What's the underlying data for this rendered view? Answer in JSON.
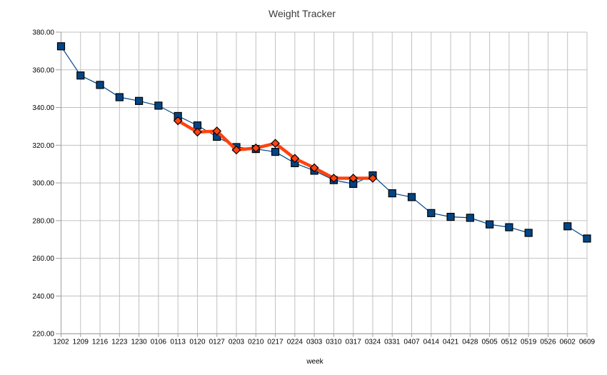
{
  "chart_data": {
    "type": "line",
    "title": "Weight Tracker",
    "xlabel": "week",
    "ylabel": "",
    "ylim": [
      220,
      380
    ],
    "yticks": [
      380,
      360,
      340,
      320,
      300,
      280,
      260,
      240,
      220
    ],
    "ytick_labels": [
      "380.00",
      "360.00",
      "340.00",
      "320.00",
      "300.00",
      "280.00",
      "260.00",
      "240.00",
      "220.00"
    ],
    "grid": "both",
    "legend": "none",
    "categories": [
      "1202",
      "1209",
      "1216",
      "1223",
      "1230",
      "0106",
      "0113",
      "0120",
      "0127",
      "0203",
      "0210",
      "0217",
      "0224",
      "0303",
      "0310",
      "0317",
      "0324",
      "0331",
      "0407",
      "0414",
      "0421",
      "0428",
      "0505",
      "0512",
      "0519",
      "0526",
      "0602",
      "0609"
    ],
    "series": [
      {
        "name": "blue-squares",
        "marker": "square",
        "color": "#004586",
        "marker_border": "#000000",
        "line_width": 1.2,
        "values": [
          372.5,
          357,
          352,
          345.5,
          343.5,
          341,
          335.5,
          330.5,
          324.5,
          319,
          318,
          316.5,
          310.5,
          306.5,
          301.5,
          299.5,
          304,
          294.5,
          292.5,
          284,
          282,
          281.5,
          278,
          276.5,
          273.5,
          null,
          277,
          270.5
        ]
      },
      {
        "name": "orange-diamonds",
        "marker": "diamond",
        "color": "#ff420e",
        "marker_border": "#000000",
        "line_width": 4.5,
        "values": [
          null,
          null,
          null,
          null,
          null,
          null,
          333,
          327,
          327.5,
          317.5,
          318.5,
          321,
          313,
          308,
          302.5,
          302.5,
          302.5,
          null,
          null,
          null,
          null,
          null,
          null,
          null,
          null,
          null,
          null,
          null
        ]
      }
    ],
    "style": {
      "background": "#ffffff",
      "grid_color": "#c0c0c0",
      "axis_color": "#9e9e9e",
      "tick_text_color": "#000000",
      "title_color": "#3a3a3a",
      "tick_font_size": 10
    }
  }
}
